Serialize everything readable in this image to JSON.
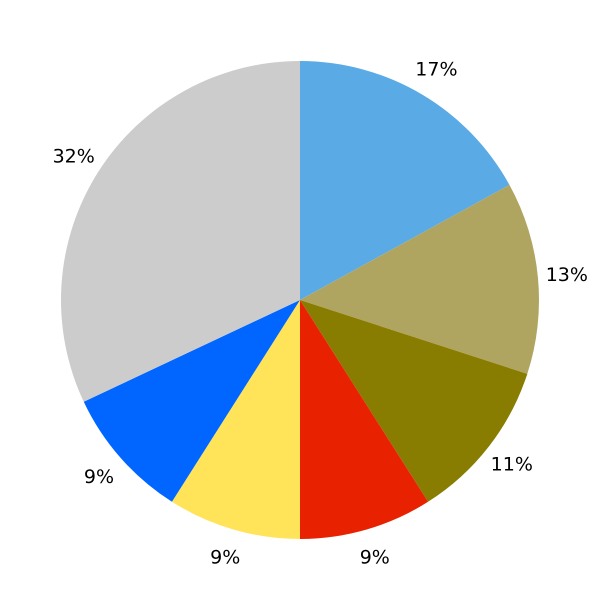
{
  "chart_data": {
    "type": "pie",
    "start_angle": "top, clockwise",
    "values": [
      17,
      13,
      11,
      9,
      9,
      9,
      32
    ],
    "labels": [
      "17%",
      "13%",
      "11%",
      "9%",
      "9%",
      "9%",
      "32%"
    ],
    "colors": [
      "#5AAAE5",
      "#B0A560",
      "#887D00",
      "#E82200",
      "#FFE45A",
      "#0066FF",
      "#CCCCCC"
    ],
    "title": "",
    "legend": "none"
  }
}
